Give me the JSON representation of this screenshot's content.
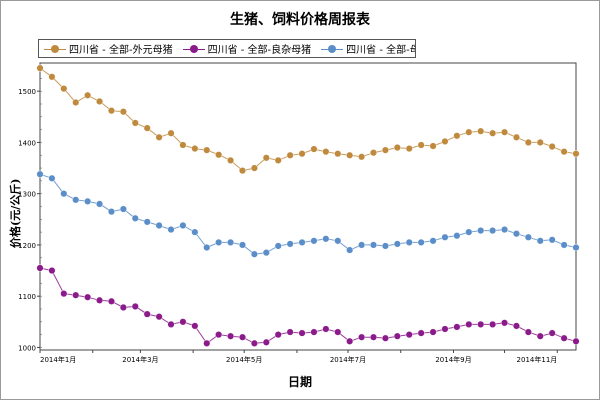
{
  "chart_data": {
    "type": "line",
    "title": "生猪、饲料价格周报表",
    "xlabel": "日期",
    "ylabel": "价格(元/公斤)",
    "ylim": [
      995,
      1555
    ],
    "yticks": [
      1000,
      1100,
      1200,
      1300,
      1400,
      1500
    ],
    "xticks": [
      "2014年1月",
      "2014年3月",
      "2014年5月",
      "2014年7月",
      "2014年9月",
      "2014年11月"
    ],
    "x": [
      "2014-01-01",
      "2014-01-08",
      "2014-01-15",
      "2014-01-22",
      "2014-01-29",
      "2014-02-05",
      "2014-02-12",
      "2014-02-19",
      "2014-02-26",
      "2014-03-05",
      "2014-03-12",
      "2014-03-19",
      "2014-03-26",
      "2014-04-02",
      "2014-04-09",
      "2014-04-16",
      "2014-04-23",
      "2014-04-30",
      "2014-05-07",
      "2014-05-14",
      "2014-05-21",
      "2014-05-28",
      "2014-06-04",
      "2014-06-11",
      "2014-06-18",
      "2014-06-25",
      "2014-07-02",
      "2014-07-09",
      "2014-07-16",
      "2014-07-23",
      "2014-07-30",
      "2014-08-06",
      "2014-08-13",
      "2014-08-20",
      "2014-08-27",
      "2014-09-03",
      "2014-09-10",
      "2014-09-17",
      "2014-09-24",
      "2014-10-01",
      "2014-10-08",
      "2014-10-15",
      "2014-10-22",
      "2014-10-29",
      "2014-11-05",
      "2014-11-12"
    ],
    "series": [
      {
        "name": "四川省 - 全部-外元母猪",
        "color": "#c08a3e",
        "values": [
          1545,
          1528,
          1505,
          1478,
          1492,
          1480,
          1462,
          1460,
          1438,
          1428,
          1410,
          1418,
          1395,
          1388,
          1385,
          1376,
          1365,
          1345,
          1350,
          1370,
          1365,
          1375,
          1378,
          1387,
          1382,
          1378,
          1375,
          1372,
          1380,
          1385,
          1390,
          1388,
          1395,
          1393,
          1402,
          1413,
          1420,
          1422,
          1418,
          1420,
          1410,
          1400,
          1400,
          1392,
          1382,
          1378
        ]
      },
      {
        "name": "四川省 - 全部-良杂母猪",
        "color": "#8b1a8b",
        "values": [
          1155,
          1150,
          1105,
          1102,
          1098,
          1092,
          1090,
          1078,
          1080,
          1065,
          1060,
          1045,
          1050,
          1042,
          1008,
          1025,
          1022,
          1020,
          1008,
          1010,
          1025,
          1030,
          1028,
          1030,
          1036,
          1030,
          1012,
          1020,
          1020,
          1018,
          1022,
          1025,
          1028,
          1030,
          1036,
          1040,
          1045,
          1045,
          1045,
          1048,
          1042,
          1030,
          1022,
          1028,
          1018,
          1012
        ]
      },
      {
        "name": "四川省 - 全部-母猪均价",
        "color": "#5b8ec9",
        "values": [
          1338,
          1330,
          1300,
          1288,
          1285,
          1280,
          1265,
          1270,
          1252,
          1245,
          1238,
          1230,
          1238,
          1225,
          1195,
          1205,
          1205,
          1200,
          1182,
          1185,
          1198,
          1202,
          1205,
          1208,
          1212,
          1208,
          1190,
          1200,
          1200,
          1198,
          1202,
          1205,
          1205,
          1208,
          1215,
          1218,
          1225,
          1228,
          1228,
          1230,
          1222,
          1215,
          1208,
          1210,
          1200,
          1195
        ]
      }
    ]
  }
}
